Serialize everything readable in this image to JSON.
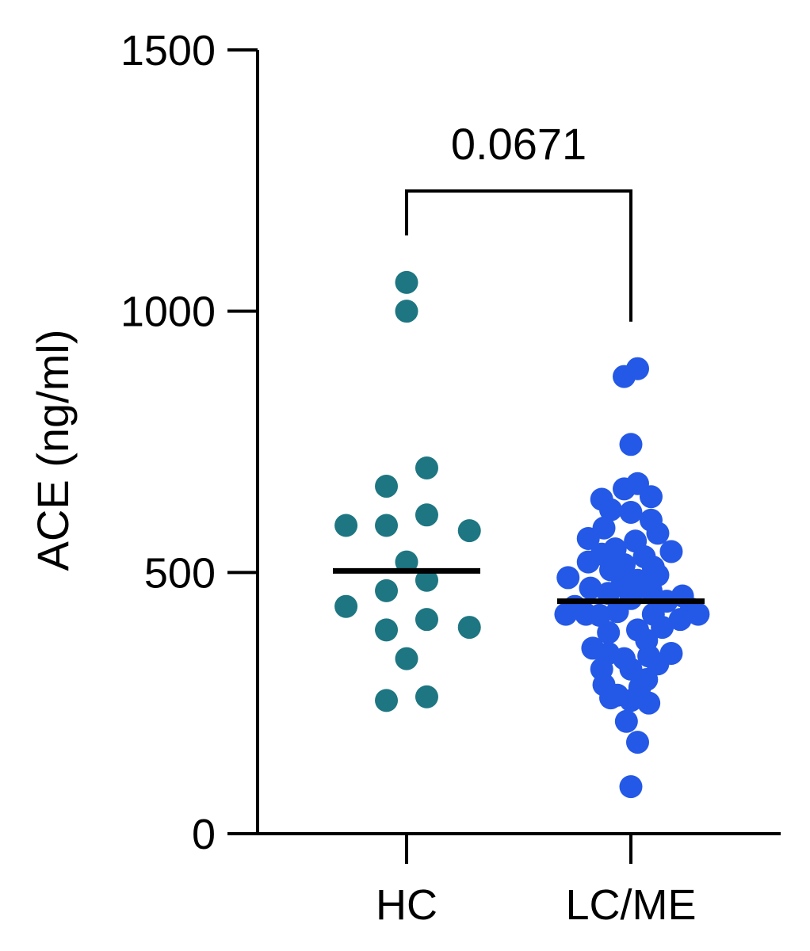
{
  "chart_data": {
    "type": "scatter",
    "ylabel": "ACE (ng/ml)",
    "xlabel": "",
    "ylim": [
      0,
      1500
    ],
    "yticks": [
      0,
      500,
      1000,
      1500
    ],
    "ytick_labels": [
      "0",
      "500",
      "1000",
      "1500"
    ],
    "grid": false,
    "categories": [
      "HC",
      "LC/ME"
    ],
    "series": [
      {
        "category": "HC",
        "color": "#1d7681",
        "median": 503,
        "points": [
          {
            "x": 0.0,
            "y": 1055
          },
          {
            "x": 0.0,
            "y": 1000
          },
          {
            "x": 0.09,
            "y": 700
          },
          {
            "x": -0.09,
            "y": 665
          },
          {
            "x": 0.09,
            "y": 610
          },
          {
            "x": -0.27,
            "y": 590
          },
          {
            "x": -0.09,
            "y": 590
          },
          {
            "x": 0.28,
            "y": 580
          },
          {
            "x": 0.0,
            "y": 520
          },
          {
            "x": 0.09,
            "y": 485
          },
          {
            "x": -0.09,
            "y": 465
          },
          {
            "x": -0.27,
            "y": 435
          },
          {
            "x": 0.09,
            "y": 410
          },
          {
            "x": 0.28,
            "y": 395
          },
          {
            "x": -0.09,
            "y": 390
          },
          {
            "x": 0.0,
            "y": 335
          },
          {
            "x": 0.09,
            "y": 262
          },
          {
            "x": -0.09,
            "y": 255
          }
        ]
      },
      {
        "category": "LC/ME",
        "color": "#2458e6",
        "median": 445,
        "points": [
          {
            "x": 0.03,
            "y": 890
          },
          {
            "x": -0.03,
            "y": 875
          },
          {
            "x": 0.0,
            "y": 745
          },
          {
            "x": 0.03,
            "y": 670
          },
          {
            "x": -0.03,
            "y": 660
          },
          {
            "x": 0.09,
            "y": 645
          },
          {
            "x": -0.13,
            "y": 640
          },
          {
            "x": -0.09,
            "y": 620
          },
          {
            "x": 0.0,
            "y": 615
          },
          {
            "x": 0.09,
            "y": 600
          },
          {
            "x": -0.12,
            "y": 585
          },
          {
            "x": 0.12,
            "y": 575
          },
          {
            "x": -0.19,
            "y": 565
          },
          {
            "x": 0.02,
            "y": 560
          },
          {
            "x": -0.07,
            "y": 545
          },
          {
            "x": 0.18,
            "y": 540
          },
          {
            "x": -0.13,
            "y": 535
          },
          {
            "x": 0.06,
            "y": 530
          },
          {
            "x": -0.19,
            "y": 520
          },
          {
            "x": -0.03,
            "y": 515
          },
          {
            "x": 0.1,
            "y": 510
          },
          {
            "x": -0.09,
            "y": 505
          },
          {
            "x": 0.12,
            "y": 495
          },
          {
            "x": -0.28,
            "y": 490
          },
          {
            "x": 0.03,
            "y": 485
          },
          {
            "x": -0.04,
            "y": 475
          },
          {
            "x": -0.18,
            "y": 470
          },
          {
            "x": 0.09,
            "y": 465
          },
          {
            "x": -0.1,
            "y": 460
          },
          {
            "x": 0.23,
            "y": 455
          },
          {
            "x": 0.0,
            "y": 450
          },
          {
            "x": 0.16,
            "y": 445
          },
          {
            "x": -0.25,
            "y": 435
          },
          {
            "x": 0.27,
            "y": 430
          },
          {
            "x": -0.06,
            "y": 425
          },
          {
            "x": -0.29,
            "y": 420
          },
          {
            "x": -0.2,
            "y": 420
          },
          {
            "x": 0.3,
            "y": 420
          },
          {
            "x": 0.1,
            "y": 420
          },
          {
            "x": -0.14,
            "y": 418
          },
          {
            "x": 0.22,
            "y": 410
          },
          {
            "x": 0.14,
            "y": 395
          },
          {
            "x": 0.03,
            "y": 390
          },
          {
            "x": -0.1,
            "y": 385
          },
          {
            "x": 0.07,
            "y": 370
          },
          {
            "x": -0.17,
            "y": 355
          },
          {
            "x": 0.18,
            "y": 345
          },
          {
            "x": -0.1,
            "y": 345
          },
          {
            "x": 0.08,
            "y": 340
          },
          {
            "x": -0.03,
            "y": 335
          },
          {
            "x": 0.12,
            "y": 325
          },
          {
            "x": -0.13,
            "y": 315
          },
          {
            "x": 0.0,
            "y": 315
          },
          {
            "x": 0.07,
            "y": 295
          },
          {
            "x": -0.12,
            "y": 285
          },
          {
            "x": 0.04,
            "y": 280
          },
          {
            "x": -0.06,
            "y": 265
          },
          {
            "x": -0.09,
            "y": 260
          },
          {
            "x": 0.0,
            "y": 255
          },
          {
            "x": 0.08,
            "y": 250
          },
          {
            "x": -0.02,
            "y": 215
          },
          {
            "x": 0.03,
            "y": 175
          },
          {
            "x": 0.0,
            "y": 90
          }
        ]
      }
    ],
    "annotations": [
      {
        "type": "bracket",
        "from": "HC",
        "to": "LC/ME",
        "text": "0.0671",
        "y": 1230,
        "left_bottom": 1145,
        "right_bottom": 980
      }
    ]
  }
}
